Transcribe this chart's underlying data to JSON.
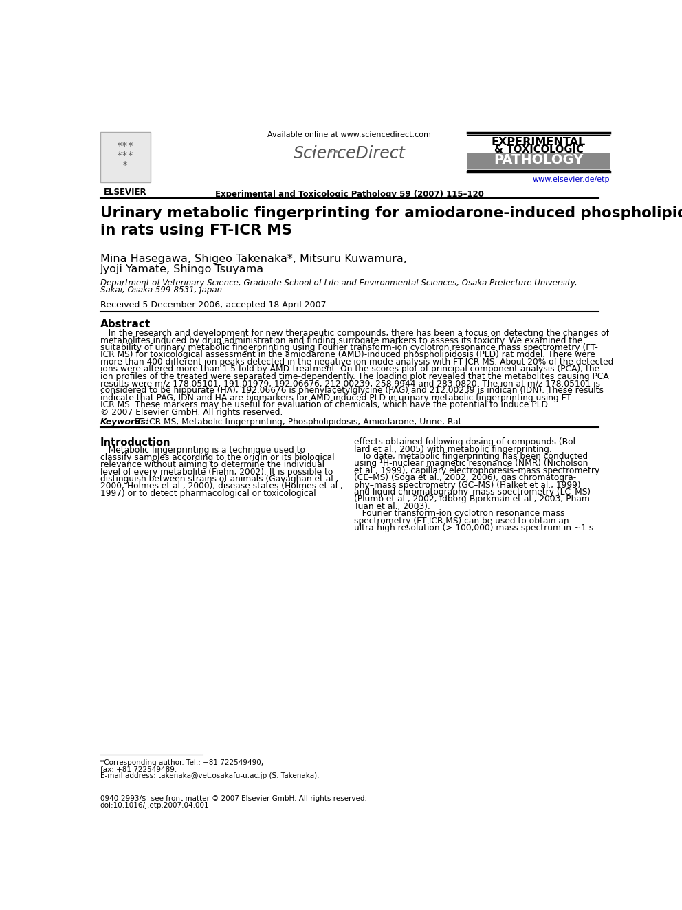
{
  "title": "Urinary metabolic fingerprinting for amiodarone-induced phospholipidosis\nin rats using FT-ICR MS",
  "authors_line1": "Mina Hasegawa, Shigeo Takenaka*, Mitsuru Kuwamura,",
  "authors_line2": "Jyoji Yamate, Shingo Tsuyama",
  "affiliation_line1": "Department of Veterinary Science, Graduate School of Life and Environmental Sciences, Osaka Prefecture University,",
  "affiliation_line2": "Sakai, Osaka 599-8531, Japan",
  "received": "Received 5 December 2006; accepted 18 April 2007",
  "journal_info": "Experimental and Toxicologic Pathology 59 (2007) 115–120",
  "available_online": "Available online at www.sciencedirect.com",
  "sciencedirect_text": "ScienceDirect",
  "journal_url": "www.elsevier.de/etp",
  "elsevier_text": "ELSEVIER",
  "abstract_title": "Abstract",
  "keywords_label": "Keywords:",
  "keywords_text": " FT-ICR MS; Metabolic fingerprinting; Phospholipidosis; Amiodarone; Urine; Rat",
  "intro_title": "Introduction",
  "footnote1": "*Corresponding author. Tel.: +81 722549490;",
  "footnote2": "fax: +81 722549489.",
  "footnote3": "E-mail address: takenaka@vet.osakafu-u.ac.jp (S. Takenaka).",
  "footer1": "0940-2993/$- see front matter © 2007 Elsevier GmbH. All rights reserved.",
  "footer2": "doi:10.1016/j.etp.2007.04.001",
  "bg_color": "#ffffff",
  "text_color": "#000000",
  "link_color": "#0000cc",
  "pathology_bg": "#888888",
  "pathology_text": "#ffffff"
}
